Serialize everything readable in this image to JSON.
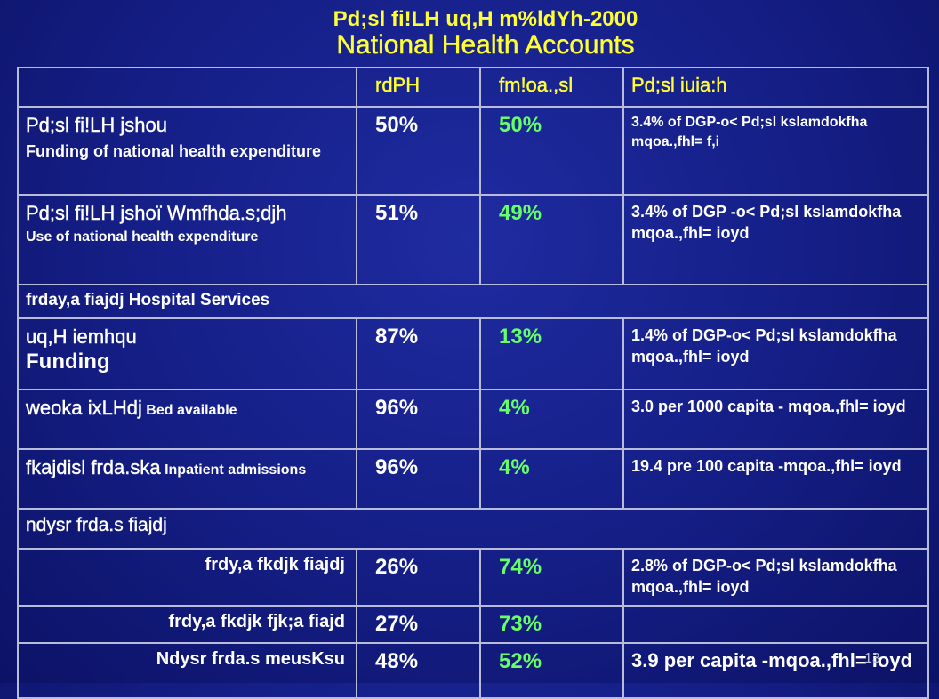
{
  "title": {
    "line1": "Pd;sl fi!LH uq,H m%ldYh-2000",
    "line2": "National Health Accounts"
  },
  "table": {
    "headers": [
      "",
      "rdPH",
      "fm!oa.,sl",
      "Pd;sl iuia:h"
    ],
    "rows": [
      {
        "label": "Pd;sl fi!LH jshou",
        "sublabel": "Funding of national health expenditure",
        "public": "50%",
        "private": "50%",
        "note": "3.4%  of DGP-o< Pd;sl kslamdokfha mqoa.,fhl= f,i"
      },
      {
        "label": "Pd;sl fi!LH jshoï Wmfhda.s;djh",
        "sublabel": "Use of national health expenditure",
        "public": "51%",
        "private": "49%",
        "note": "3.4% of DGP -o< Pd;sl kslamdokfha mqoa.,fhl= ioyd"
      },
      {
        "section": "frday,a fiajdj Hospital Services"
      },
      {
        "label": "uq,H iemhqu",
        "sublabel": "Funding",
        "public": "87%",
        "private": "13%",
        "note": "1.4% of DGP-o< Pd;sl kslamdokfha mqoa.,fhl= ioyd"
      },
      {
        "label": "weoka ixLHdj",
        "label_en": "Bed available",
        "public": "96%",
        "private": "4%",
        "note": "3.0 per 1000 capita - mqoa.,fhl= ioyd"
      },
      {
        "label": "fkajdisl frda.ska",
        "label_en": "Inpatient admissions",
        "public": "96%",
        "private": "4%",
        "note": "19.4 pre 100 capita -mqoa.,fhl= ioyd"
      },
      {
        "section": "ndysr frda.s fiajdj"
      },
      {
        "label": "frdy,a fkdjk fiajdj",
        "public": "26%",
        "private": "74%",
        "note": "2.8%  of DGP-o< Pd;sl kslamdokfha mqoa.,fhl= ioyd"
      },
      {
        "label": "frdy,a fkdjk fjk;a fiajd",
        "public": "27%",
        "private": "73%",
        "note": ""
      },
      {
        "label": "Ndysr frda.s meusKsu",
        "public": "48%",
        "private": "52%",
        "note": "3.9 per capita -mqoa.,fhl= ioyd"
      }
    ]
  },
  "slide_number": "13"
}
